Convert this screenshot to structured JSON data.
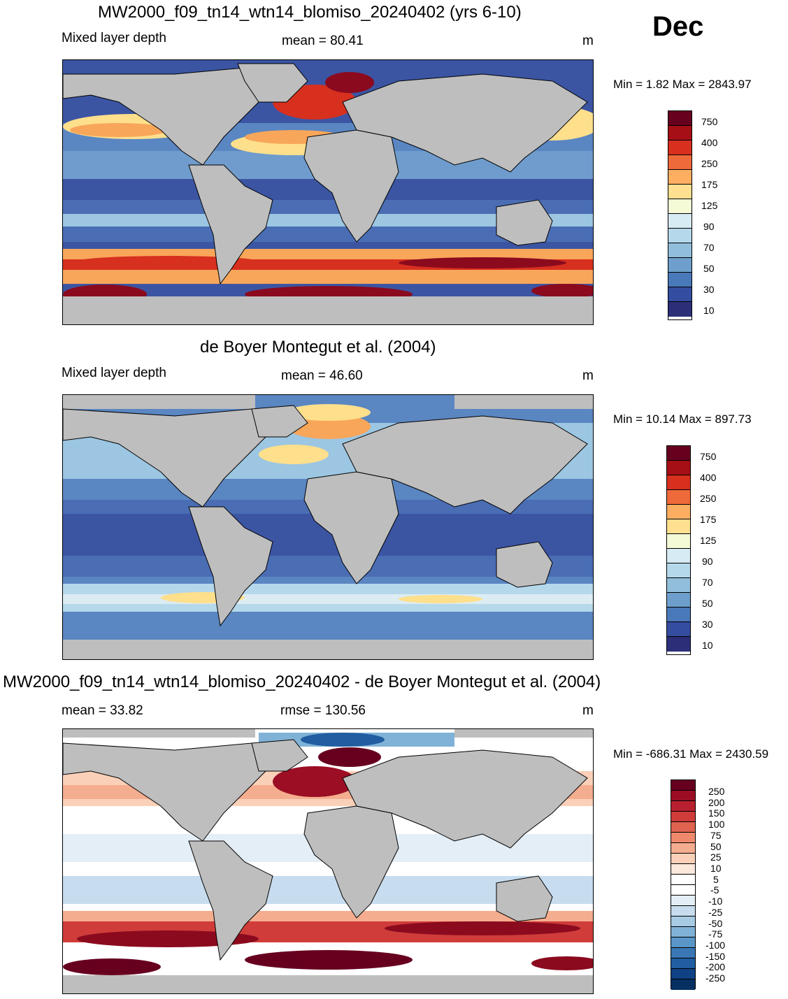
{
  "month": "Dec",
  "panels": [
    {
      "title": "MW2000_f09_tn14_wtn14_blomiso_20240402 (yrs 6-10)",
      "left_label": "Mixed layer depth",
      "center_label": "mean =  80.41",
      "units": "m",
      "minmax": "Min =    1.82 Max = 2843.97"
    },
    {
      "title": "de Boyer Montegut et al. (2004)",
      "left_label": "Mixed layer depth",
      "center_label": "mean =  46.60",
      "units": "m",
      "minmax": "Min =  10.14 Max = 897.73"
    },
    {
      "title": "MW2000_f09_tn14_wtn14_blomiso_20240402 - de Boyer Montegut et al. (2004)",
      "left_label": "mean =  33.82",
      "center_label": "rmse = 130.56",
      "units": "m",
      "minmax": "Min = -686.31 Max = 2430.59"
    }
  ],
  "colorbar_mld": {
    "labels": [
      "750",
      "400",
      "250",
      "175",
      "125",
      "90",
      "70",
      "50",
      "30",
      "10"
    ],
    "colors": [
      "#67001f",
      "#a50f15",
      "#d7301f",
      "#ef6a3a",
      "#fdae61",
      "#fee090",
      "#f4f9d6",
      "#d6ebf4",
      "#b5d8ea",
      "#91bfdb",
      "#6e9fcc",
      "#4a79b9",
      "#354da0",
      "#2c2f78"
    ]
  },
  "colorbar_diff": {
    "labels": [
      "250",
      "200",
      "150",
      "100",
      "75",
      "50",
      "25",
      "10",
      "5",
      "-5",
      "-10",
      "-25",
      "-50",
      "-75",
      "-100",
      "-150",
      "-200",
      "-250"
    ],
    "colors": [
      "#67001f",
      "#9b0e24",
      "#b8202f",
      "#cf3c3a",
      "#e0634f",
      "#ee8a6b",
      "#f5ad8f",
      "#fbd0b9",
      "#fde8dc",
      "#ffffff",
      "#ffffff",
      "#e3eef6",
      "#c7dcef",
      "#a6cbe3",
      "#80b2d7",
      "#5a96c8",
      "#3a78b5",
      "#215da0",
      "#0e4285",
      "#053061"
    ]
  },
  "map_features": {
    "land_color": "#bebebe",
    "ocean_colors": {
      "deep_blue": "#3b55a3",
      "mid_blue": "#5a86c2",
      "light_blue": "#9cc6e2",
      "pale": "#dcecf3",
      "orange": "#f8a65a",
      "red": "#d7301f",
      "darkred": "#8b0a1e",
      "yellow": "#fedf8c"
    }
  }
}
